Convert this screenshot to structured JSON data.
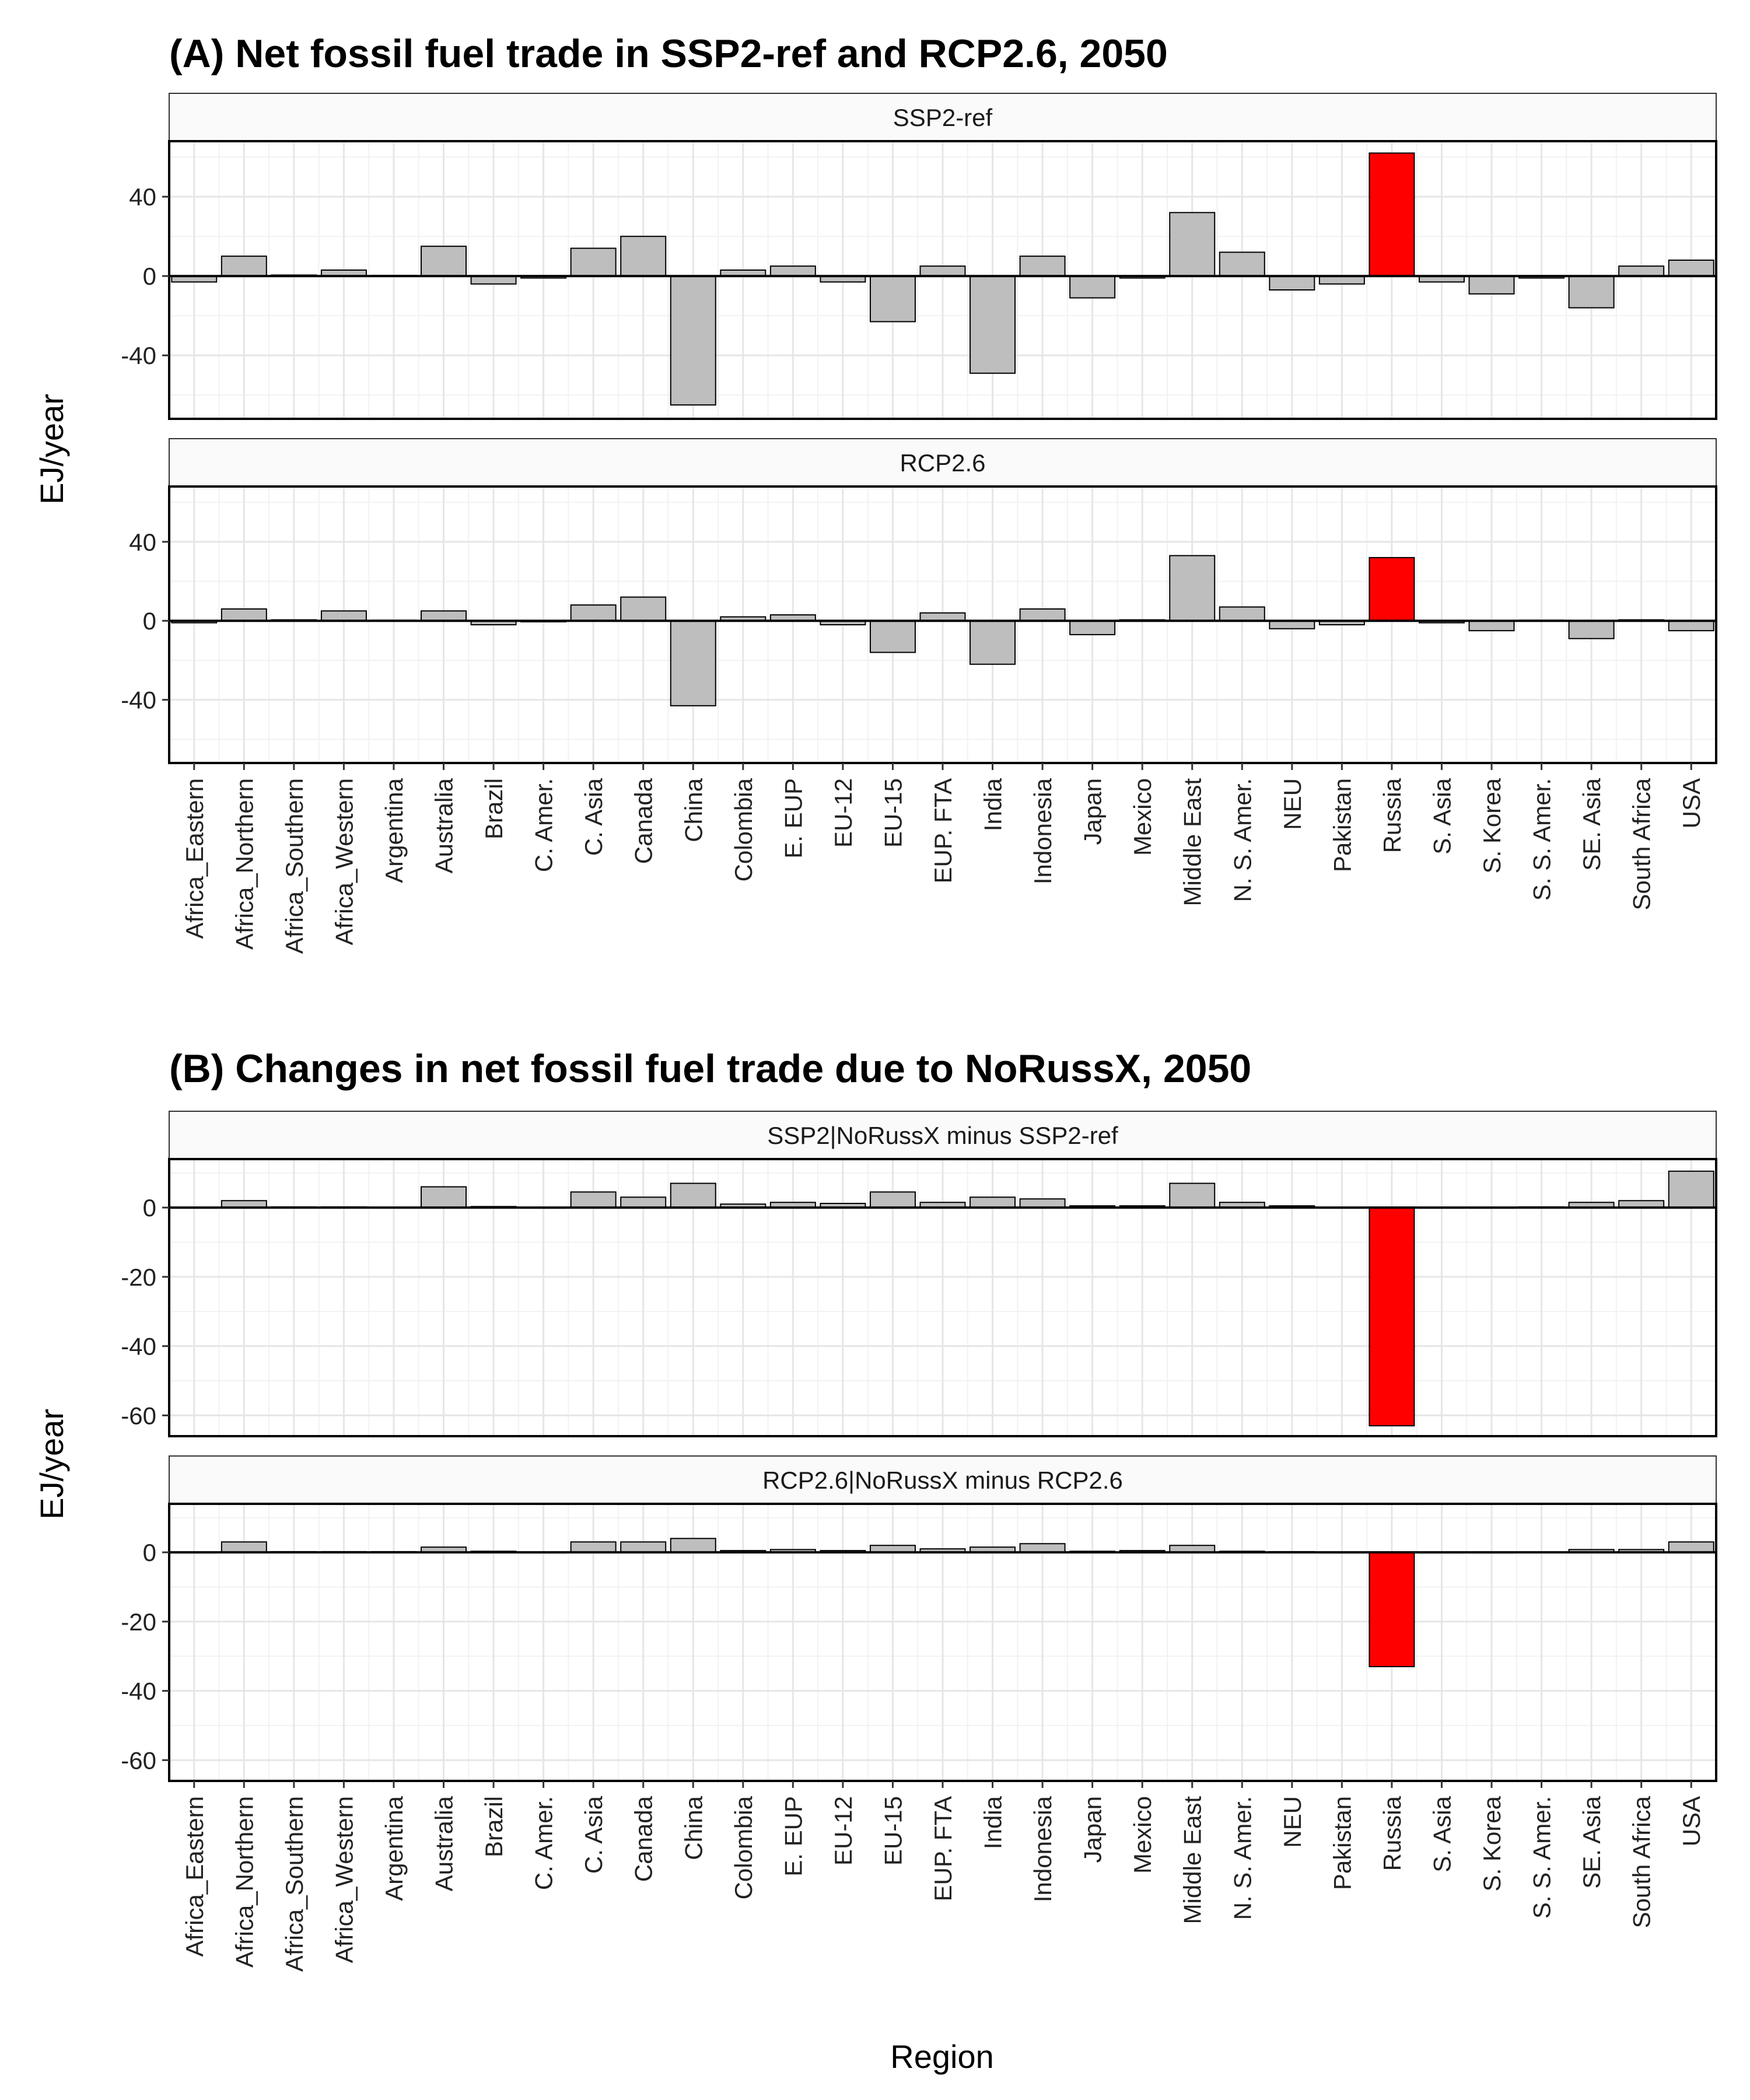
{
  "chart_data": [
    {
      "type": "bar",
      "title": "(A) Net fossil fuel trade in SSP2-ref and RCP2.6, 2050",
      "ylabel": "EJ/year",
      "ylim": [
        -72,
        68
      ],
      "yticks": [
        -40,
        0,
        40
      ],
      "highlight_color": "#ff0000",
      "bar_color": "#bebebe",
      "highlight_category": "Russia",
      "categories": [
        "Africa_Eastern",
        "Africa_Northern",
        "Africa_Southern",
        "Africa_Western",
        "Argentina",
        "Australia",
        "Brazil",
        "C. Amer.",
        "C. Asia",
        "Canada",
        "China",
        "Colombia",
        "E. EUP",
        "EU-12",
        "EU-15",
        "EUP. FTA",
        "India",
        "Indonesia",
        "Japan",
        "Mexico",
        "Middle East",
        "N. S. Amer.",
        "NEU",
        "Pakistan",
        "Russia",
        "S. Asia",
        "S. Korea",
        "S. S. Amer.",
        "SE. Asia",
        "South Africa",
        "USA"
      ],
      "facets": [
        {
          "label": "SSP2-ref",
          "values": [
            -3,
            10,
            0.5,
            3,
            0.3,
            15,
            -4,
            -1,
            14,
            20,
            -65,
            3,
            5,
            -3,
            -23,
            5,
            -49,
            10,
            -11,
            -1,
            32,
            12,
            -7,
            -4,
            62,
            -3,
            -9,
            -1,
            -16,
            5,
            8
          ]
        },
        {
          "label": "RCP2.6",
          "values": [
            -1,
            6,
            0.5,
            5,
            0.3,
            5,
            -2,
            -0.5,
            8,
            12,
            -43,
            2,
            3,
            -2,
            -16,
            4,
            -22,
            6,
            -7,
            0.5,
            33,
            7,
            -4,
            -2,
            32,
            -1,
            -5,
            0.3,
            -9,
            0.5,
            -5
          ]
        }
      ]
    },
    {
      "type": "bar",
      "title": "(B) Changes in net fossil fuel trade due to NoRussX, 2050",
      "ylabel": "EJ/year",
      "xlabel": "Region",
      "ylim": [
        -66,
        14
      ],
      "yticks": [
        -60,
        -40,
        -20,
        0
      ],
      "highlight_color": "#ff0000",
      "bar_color": "#bebebe",
      "highlight_category": "Russia",
      "categories": [
        "Africa_Eastern",
        "Africa_Northern",
        "Africa_Southern",
        "Africa_Western",
        "Argentina",
        "Australia",
        "Brazil",
        "C. Amer.",
        "C. Asia",
        "Canada",
        "China",
        "Colombia",
        "E. EUP",
        "EU-12",
        "EU-15",
        "EUP. FTA",
        "India",
        "Indonesia",
        "Japan",
        "Mexico",
        "Middle East",
        "N. S. Amer.",
        "NEU",
        "Pakistan",
        "Russia",
        "S. Asia",
        "S. Korea",
        "S. S. Amer.",
        "SE. Asia",
        "South Africa",
        "USA"
      ],
      "facets": [
        {
          "label": "SSP2|NoRussX minus SSP2-ref",
          "values": [
            0,
            2,
            0.2,
            0.2,
            0.1,
            6,
            0.3,
            0,
            4.5,
            3,
            7,
            1,
            1.5,
            1.2,
            4.5,
            1.5,
            3,
            2.5,
            0.5,
            0.5,
            7,
            1.5,
            0.5,
            0,
            -63,
            0,
            0,
            0.2,
            1.5,
            2,
            10.5
          ]
        },
        {
          "label": "RCP2.6|NoRussX minus RCP2.6",
          "values": [
            0,
            3,
            0.2,
            0.2,
            0.2,
            1.5,
            0.3,
            0,
            3,
            3,
            4,
            0.5,
            0.8,
            0.5,
            2,
            1,
            1.5,
            2.5,
            0.3,
            0.5,
            2,
            0.3,
            0.2,
            0,
            -33,
            0,
            0,
            0.1,
            0.8,
            0.8,
            3
          ]
        }
      ]
    }
  ]
}
